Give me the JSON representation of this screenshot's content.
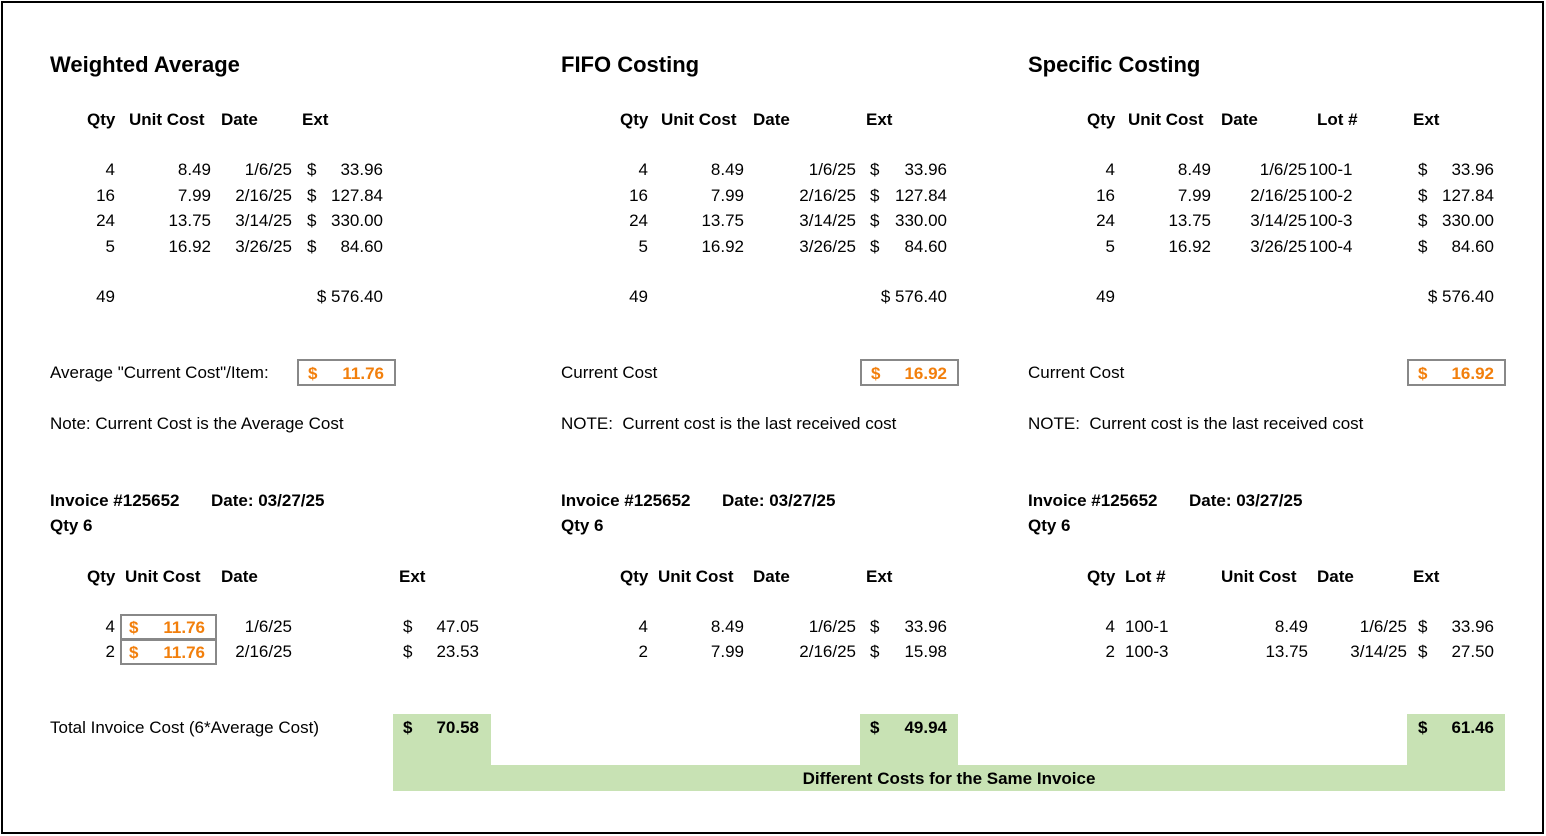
{
  "weighted": {
    "title": "Weighted Average",
    "headers": {
      "qty": "Qty",
      "unit_cost": "Unit Cost",
      "date": "Date",
      "ext": "Ext"
    },
    "rows": [
      {
        "qty": "4",
        "unit_cost": "8.49",
        "date": "1/6/25",
        "ext_sym": "$",
        "ext": "33.96"
      },
      {
        "qty": "16",
        "unit_cost": "7.99",
        "date": "2/16/25",
        "ext_sym": "$",
        "ext": "127.84"
      },
      {
        "qty": "24",
        "unit_cost": "13.75",
        "date": "3/14/25",
        "ext_sym": "$",
        "ext": "330.00"
      },
      {
        "qty": "5",
        "unit_cost": "16.92",
        "date": "3/26/25",
        "ext_sym": "$",
        "ext": "84.60"
      }
    ],
    "total_qty": "49",
    "total_ext": "$ 576.40",
    "cost_label": "Average \"Current Cost\"/Item:",
    "cost_sym": "$",
    "cost_value": "11.76",
    "note": "Note: Current Cost is the Average Cost",
    "invoice": "Invoice #125652",
    "invoice_date": "Date: 03/27/25",
    "invoice_qty": "Qty 6",
    "inv_headers": {
      "qty": "Qty",
      "unit_cost": "Unit Cost",
      "date": "Date",
      "ext": "Ext"
    },
    "inv_rows": [
      {
        "qty": "4",
        "cost_sym": "$",
        "unit_cost": "11.76",
        "date": "1/6/25",
        "ext_sym": "$",
        "ext": "47.05"
      },
      {
        "qty": "2",
        "cost_sym": "$",
        "unit_cost": "11.76",
        "date": "2/16/25",
        "ext_sym": "$",
        "ext": "23.53"
      }
    ],
    "total_label": "Total Invoice Cost (6*Average Cost)",
    "total_sym": "$",
    "total_value": "70.58"
  },
  "fifo": {
    "title": "FIFO Costing",
    "headers": {
      "qty": "Qty",
      "unit_cost": "Unit Cost",
      "date": "Date",
      "ext": "Ext"
    },
    "rows": [
      {
        "qty": "4",
        "unit_cost": "8.49",
        "date": "1/6/25",
        "ext_sym": "$",
        "ext": "33.96"
      },
      {
        "qty": "16",
        "unit_cost": "7.99",
        "date": "2/16/25",
        "ext_sym": "$",
        "ext": "127.84"
      },
      {
        "qty": "24",
        "unit_cost": "13.75",
        "date": "3/14/25",
        "ext_sym": "$",
        "ext": "330.00"
      },
      {
        "qty": "5",
        "unit_cost": "16.92",
        "date": "3/26/25",
        "ext_sym": "$",
        "ext": "84.60"
      }
    ],
    "total_qty": "49",
    "total_ext": "$ 576.40",
    "cost_label": "Current Cost",
    "cost_sym": "$",
    "cost_value": "16.92",
    "note": "NOTE:  Current cost is the last received cost",
    "invoice": "Invoice #125652",
    "invoice_date": "Date: 03/27/25",
    "invoice_qty": "Qty 6",
    "inv_headers": {
      "qty": "Qty",
      "unit_cost": "Unit Cost",
      "date": "Date",
      "ext": "Ext"
    },
    "inv_rows": [
      {
        "qty": "4",
        "unit_cost": "8.49",
        "date": "1/6/25",
        "ext_sym": "$",
        "ext": "33.96"
      },
      {
        "qty": "2",
        "unit_cost": "7.99",
        "date": "2/16/25",
        "ext_sym": "$",
        "ext": "15.98"
      }
    ],
    "total_sym": "$",
    "total_value": "49.94"
  },
  "specific": {
    "title": "Specific Costing",
    "headers": {
      "qty": "Qty",
      "unit_cost": "Unit Cost",
      "date": "Date",
      "lot": "Lot #",
      "ext": "Ext"
    },
    "rows": [
      {
        "qty": "4",
        "unit_cost": "8.49",
        "date": "1/6/25",
        "lot": "100-1",
        "ext_sym": "$",
        "ext": "33.96"
      },
      {
        "qty": "16",
        "unit_cost": "7.99",
        "date": "2/16/25",
        "lot": "100-2",
        "ext_sym": "$",
        "ext": "127.84"
      },
      {
        "qty": "24",
        "unit_cost": "13.75",
        "date": "3/14/25",
        "lot": "100-3",
        "ext_sym": "$",
        "ext": "330.00"
      },
      {
        "qty": "5",
        "unit_cost": "16.92",
        "date": "3/26/25",
        "lot": "100-4",
        "ext_sym": "$",
        "ext": "84.60"
      }
    ],
    "total_qty": "49",
    "total_ext": "$ 576.40",
    "cost_label": "Current Cost",
    "cost_sym": "$",
    "cost_value": "16.92",
    "note": "NOTE:  Current cost is the last received cost",
    "invoice": "Invoice #125652",
    "invoice_date": "Date: 03/27/25",
    "invoice_qty": "Qty 6",
    "inv_headers": {
      "qty": "Qty",
      "lot": "Lot #",
      "unit_cost": "Unit Cost",
      "date": "Date",
      "ext": "Ext"
    },
    "inv_rows": [
      {
        "qty": "4",
        "lot": "100-1",
        "unit_cost": "8.49",
        "date": "1/6/25",
        "ext_sym": "$",
        "ext": "33.96"
      },
      {
        "qty": "2",
        "lot": "100-3",
        "unit_cost": "13.75",
        "date": "3/14/25",
        "ext_sym": "$",
        "ext": "27.50"
      }
    ],
    "total_sym": "$",
    "total_value": "61.46"
  },
  "footer_banner": "Different Costs for the Same Invoice",
  "colors": {
    "highlight_text": "#f27f0c",
    "box_border": "#888888",
    "banner_green": "#c8e2b4"
  }
}
